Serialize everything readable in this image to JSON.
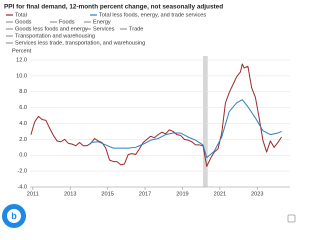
{
  "chart_data": {
    "type": "line",
    "title": "PPI for final demand, 12-month percent change, not seasonally adjusted",
    "y_label": "Percent",
    "xlim": [
      2010.85,
      2024.75
    ],
    "xticks": [
      2011,
      2013,
      2015,
      2017,
      2019,
      2021,
      2023
    ],
    "ylim": [
      -4,
      12
    ],
    "yticks": [
      {
        "value": -4,
        "label": "-4.0"
      },
      {
        "value": -2,
        "label": "-2.0"
      },
      {
        "value": 0,
        "label": "0.0"
      },
      {
        "value": 2,
        "label": "2.0"
      },
      {
        "value": 4,
        "label": "4.0"
      },
      {
        "value": 6,
        "label": "6.0"
      },
      {
        "value": 8,
        "label": "8.0"
      },
      {
        "value": 10,
        "label": "10.0"
      },
      {
        "value": 12,
        "label": "12.0"
      }
    ],
    "grid": true,
    "recession": [
      2020.1,
      2020.35
    ],
    "recession_color": "#d6d6d6",
    "series": [
      {
        "name": "Total",
        "color": "#9b2a2a",
        "x": [
          2010.9,
          2011.1,
          2011.3,
          2011.5,
          2011.7,
          2011.9,
          2012.1,
          2012.3,
          2012.5,
          2012.7,
          2012.9,
          2013.1,
          2013.3,
          2013.5,
          2013.7,
          2013.9,
          2014.1,
          2014.3,
          2014.5,
          2014.7,
          2014.9,
          2015.1,
          2015.3,
          2015.5,
          2015.7,
          2015.9,
          2016.1,
          2016.3,
          2016.5,
          2016.7,
          2016.9,
          2017.1,
          2017.3,
          2017.5,
          2017.7,
          2017.9,
          2018.1,
          2018.3,
          2018.5,
          2018.7,
          2018.9,
          2019.1,
          2019.3,
          2019.5,
          2019.7,
          2019.9,
          2020.1,
          2020.3,
          2020.5,
          2020.7,
          2020.9,
          2021.1,
          2021.3,
          2021.5,
          2021.7,
          2021.9,
          2022.1,
          2022.2,
          2022.3,
          2022.5,
          2022.7,
          2022.9,
          2023.1,
          2023.3,
          2023.5,
          2023.7,
          2023.9,
          2024.1,
          2024.3
        ],
        "values": [
          2.6,
          4.2,
          4.9,
          4.5,
          4.4,
          3.4,
          2.5,
          1.8,
          1.7,
          2.0,
          1.5,
          1.4,
          1.2,
          1.6,
          1.2,
          1.2,
          1.5,
          2.1,
          1.8,
          1.6,
          0.9,
          -0.6,
          -0.8,
          -0.8,
          -1.2,
          -1.1,
          0.1,
          0.2,
          0.1,
          0.8,
          1.6,
          2.0,
          2.4,
          2.2,
          2.6,
          2.9,
          2.7,
          3.2,
          3.0,
          2.6,
          2.5,
          2.0,
          1.9,
          1.7,
          1.3,
          1.3,
          1.2,
          -1.4,
          -0.4,
          0.4,
          0.8,
          2.8,
          6.6,
          7.9,
          8.9,
          9.9,
          10.5,
          11.5,
          11.0,
          11.2,
          8.5,
          7.3,
          4.7,
          1.9,
          0.4,
          1.8,
          1.0,
          1.6,
          2.3
        ]
      },
      {
        "name": "Total less foods, energy, and trade services",
        "color": "#2f7fc1",
        "x": [
          2014.1,
          2014.5,
          2014.9,
          2015.3,
          2015.7,
          2016.1,
          2016.5,
          2016.9,
          2017.3,
          2017.7,
          2018.1,
          2018.5,
          2018.9,
          2019.3,
          2019.7,
          2020.1,
          2020.3,
          2020.7,
          2021.1,
          2021.5,
          2021.9,
          2022.2,
          2022.5,
          2022.9,
          2023.3,
          2023.7,
          2024.1,
          2024.3
        ],
        "values": [
          1.6,
          1.7,
          1.3,
          0.9,
          0.9,
          0.9,
          1.0,
          1.4,
          1.9,
          2.1,
          2.6,
          2.8,
          2.8,
          2.3,
          1.9,
          1.3,
          -0.3,
          0.5,
          2.3,
          5.5,
          6.6,
          7.0,
          6.1,
          4.7,
          3.1,
          2.6,
          2.8,
          3.0
        ]
      }
    ],
    "legend_inactive": [
      "Goods",
      "Foods",
      "Energy",
      "Goods less foods and energy",
      "Services",
      "Trade",
      "Transportation and warehousing",
      "Services less trade, transportation, and warehousing"
    ],
    "legend_inactive_color": "#9a9a9a"
  }
}
